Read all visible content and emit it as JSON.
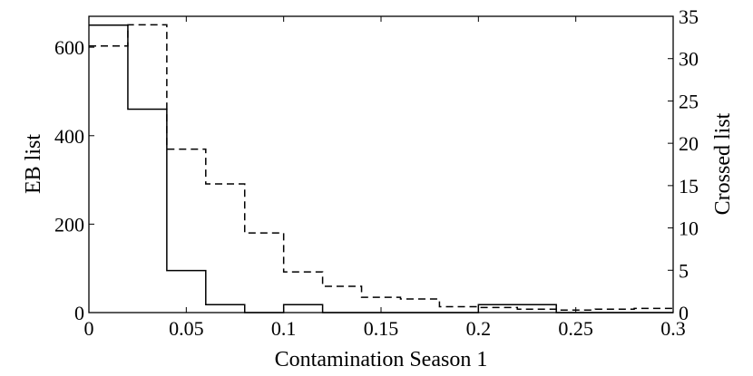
{
  "chart_data": {
    "type": "histogram",
    "xlabel": "Contamination Season 1",
    "ylabel_left": "EB list",
    "ylabel_right": "Crossed list",
    "xlim": [
      0,
      0.3
    ],
    "ylim_left": [
      0,
      670
    ],
    "ylim_right": [
      0,
      35
    ],
    "x_ticks": [
      "0",
      "0.05",
      "0.1",
      "0.15",
      "0.2",
      "0.25",
      "0.3"
    ],
    "y_left_ticks": [
      "0",
      "200",
      "400",
      "600"
    ],
    "y_right_ticks": [
      "0",
      "5",
      "10",
      "15",
      "20",
      "25",
      "30",
      "35"
    ],
    "bin_edges": [
      0,
      0.02,
      0.04,
      0.06,
      0.08,
      0.1,
      0.12,
      0.14,
      0.16,
      0.18,
      0.2,
      0.22,
      0.24,
      0.26,
      0.28,
      0.3
    ],
    "series": [
      {
        "name": "EB list",
        "axis": "left",
        "style": "solid",
        "values": [
          650,
          460,
          95,
          18,
          0,
          18,
          0,
          0,
          0,
          0,
          18,
          18,
          0,
          0,
          0
        ]
      },
      {
        "name": "Crossed list",
        "axis": "right",
        "style": "dashed",
        "values": [
          31.5,
          34,
          19.3,
          15.2,
          9.4,
          4.8,
          3.1,
          1.8,
          1.6,
          0.7,
          0.6,
          0.4,
          0.3,
          0.4,
          0.5
        ]
      }
    ],
    "grid": false,
    "colors": {
      "line": "#000000",
      "background": "#ffffff"
    }
  }
}
